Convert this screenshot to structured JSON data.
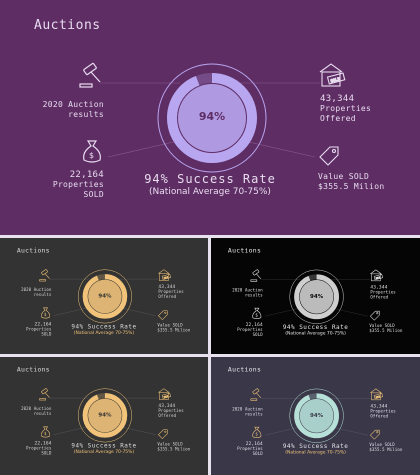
{
  "slides": [
    {
      "theme": {
        "bg": "#5e2d64",
        "accent": "#b8a6f0",
        "text": "#e8dcef",
        "line": "#8a5a8f"
      }
    },
    {
      "theme": {
        "bg": "#333333",
        "accent": "#f0c27a",
        "text": "#dcdcdc",
        "line": "#6a6a6a",
        "highlight": "#f0c27a"
      }
    },
    {
      "theme": {
        "bg": "#050505",
        "accent": "#cfcfcf",
        "text": "#e6e6e6",
        "line": "#4a4a4a"
      }
    },
    {
      "theme": {
        "bg": "#333333",
        "accent": "#f0c27a",
        "text": "#dcdcdc",
        "line": "#6a6a6a",
        "highlight": "#f0c27a"
      }
    },
    {
      "theme": {
        "bg": "#3a3848",
        "accent": "#b6e0d8",
        "text": "#e2e2ea",
        "line": "#6a6878",
        "highlight": "#f0c27a"
      }
    }
  ],
  "content": {
    "title": "Auctions",
    "percent": "94%",
    "percent_value": 94,
    "headline": "94% Success Rate",
    "subline": "(National Average 70-75%)",
    "stat_results_line1": "2020 Auction",
    "stat_results_line2": "results",
    "stat_properties_num": "43,344",
    "stat_properties_line1": "Properties",
    "stat_properties_line2": "Offered",
    "stat_sold_num": "22,164",
    "stat_sold_line1": "Properties",
    "stat_sold_line2": "SOLD",
    "stat_value_line1": "Value SOLD",
    "stat_value_line2": "$355.5 Milion",
    "icons": [
      "gavel-icon",
      "auction-house-icon",
      "money-bag-icon",
      "price-tag-icon"
    ],
    "sign_text": "SOLD"
  }
}
